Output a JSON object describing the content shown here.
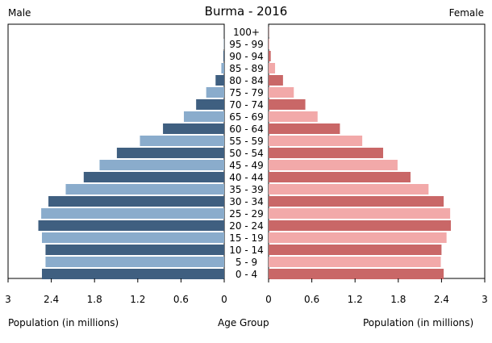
{
  "chart_data": {
    "type": "bar",
    "title": "Burma - 2016",
    "left_label": "Male",
    "right_label": "Female",
    "xlabel_left": "Population (in millions)",
    "xlabel_center": "Age Group",
    "xlabel_right": "Population (in millions)",
    "xlim": [
      0,
      3
    ],
    "male_ticks": [
      "3",
      "2.4",
      "1.8",
      "1.2",
      "0.6",
      "0"
    ],
    "female_ticks": [
      "0",
      "0.6",
      "1.2",
      "1.8",
      "2.4",
      "3"
    ],
    "categories": [
      "100+",
      "95 - 99",
      "90 - 94",
      "85 - 89",
      "80 - 84",
      "75 - 79",
      "70 - 74",
      "65 - 69",
      "60 - 64",
      "55 - 59",
      "50 - 54",
      "45 - 49",
      "40 - 44",
      "35 - 39",
      "30 - 34",
      "25 - 29",
      "20 - 24",
      "15 - 19",
      "10 - 14",
      "5 - 9",
      "0 - 4"
    ],
    "series": [
      {
        "name": "Male",
        "values": [
          0.001,
          0.004,
          0.012,
          0.04,
          0.12,
          0.25,
          0.39,
          0.56,
          0.85,
          1.17,
          1.49,
          1.73,
          1.95,
          2.2,
          2.44,
          2.54,
          2.58,
          2.53,
          2.48,
          2.48,
          2.53
        ]
      },
      {
        "name": "Female",
        "values": [
          0.003,
          0.01,
          0.03,
          0.09,
          0.2,
          0.35,
          0.51,
          0.68,
          0.99,
          1.3,
          1.59,
          1.79,
          1.97,
          2.22,
          2.43,
          2.52,
          2.53,
          2.47,
          2.4,
          2.39,
          2.43
        ]
      }
    ],
    "colors": {
      "male_dark": "#3f5f80",
      "male_light": "#8aaccc",
      "female_dark": "#c96767",
      "female_light": "#f2a9a9",
      "axis": "#000000"
    },
    "grid": false
  }
}
